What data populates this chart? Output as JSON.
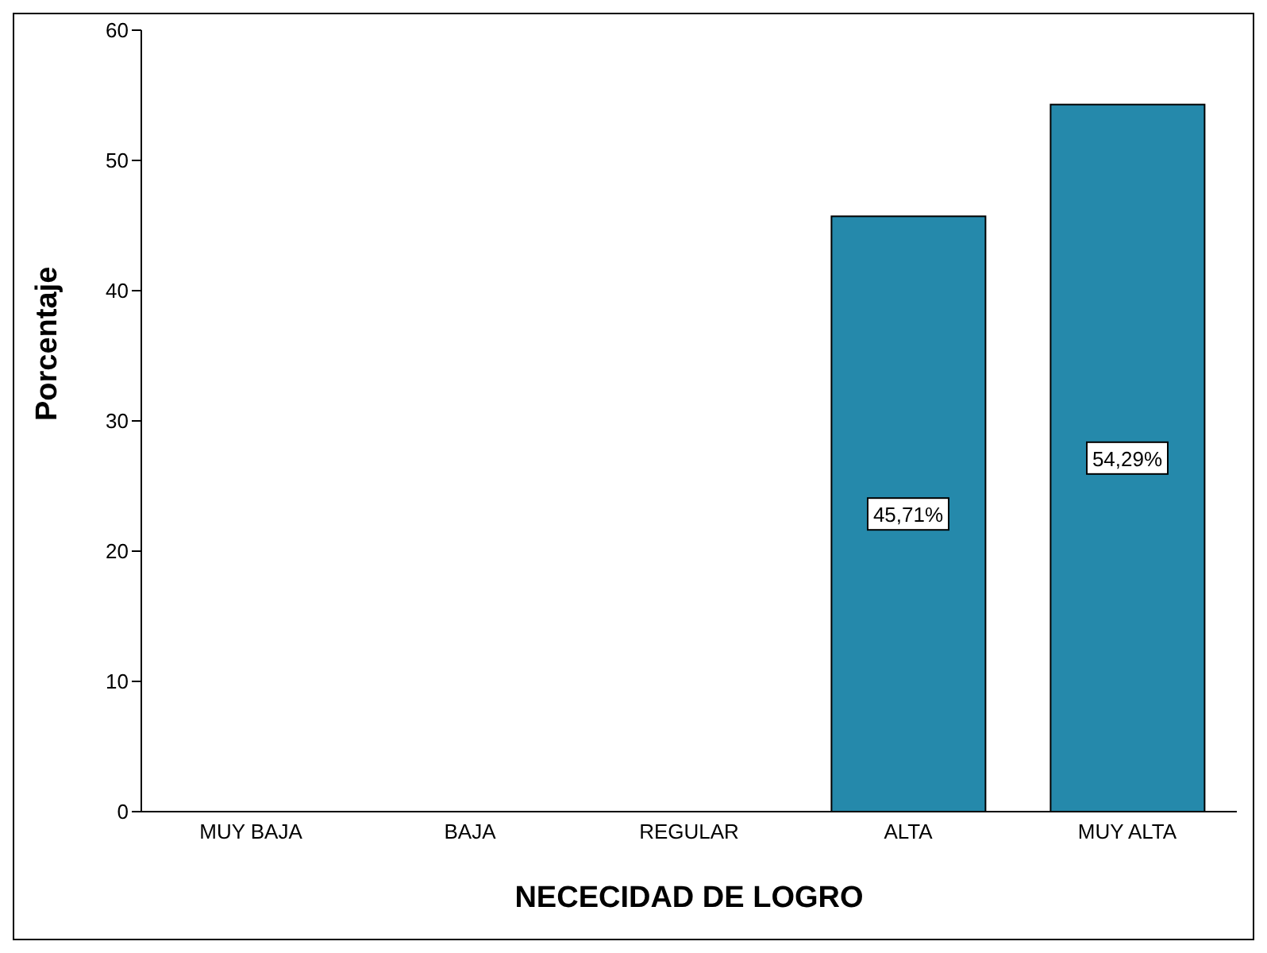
{
  "chart_data": {
    "type": "bar",
    "xlabel": "NECECIDAD DE LOGRO",
    "ylabel": "Porcentaje",
    "categories": [
      "MUY BAJA",
      "BAJA",
      "REGULAR",
      "ALTA",
      "MUY ALTA"
    ],
    "values": [
      null,
      null,
      null,
      45.71,
      54.29
    ],
    "value_labels": [
      null,
      null,
      null,
      "45,71%",
      "54,29%"
    ],
    "color": "#2589ab",
    "ylim": [
      0,
      60
    ],
    "yticks": [
      0,
      10,
      20,
      30,
      40,
      50,
      60
    ],
    "grid": false,
    "legend": false
  }
}
